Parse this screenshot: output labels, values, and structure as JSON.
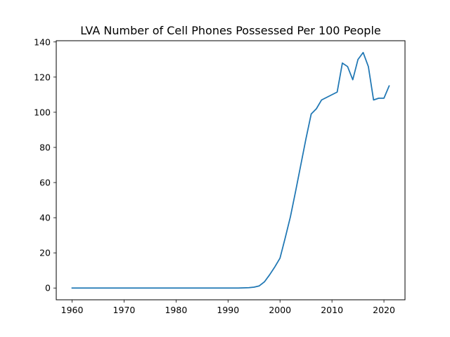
{
  "chart_data": {
    "type": "line",
    "title": "LVA Number of Cell Phones Possessed Per 100 People",
    "xlabel": "",
    "ylabel": "",
    "xlim": [
      1956.95,
      2024.05
    ],
    "ylim": [
      -6.7,
      140.7
    ],
    "xticks": [
      1960,
      1970,
      1980,
      1990,
      2000,
      2010,
      2020
    ],
    "yticks": [
      0,
      20,
      40,
      60,
      80,
      100,
      120,
      140
    ],
    "grid": false,
    "line_color": "#1f77b4",
    "series": [
      {
        "x": [
          1960,
          1961,
          1962,
          1963,
          1964,
          1965,
          1966,
          1967,
          1968,
          1969,
          1970,
          1971,
          1972,
          1973,
          1974,
          1975,
          1976,
          1977,
          1978,
          1979,
          1980,
          1981,
          1982,
          1983,
          1984,
          1985,
          1986,
          1987,
          1988,
          1989,
          1990,
          1991,
          1992,
          1993,
          1994,
          1995,
          1996,
          1997,
          1998,
          1999,
          2000,
          2001,
          2002,
          2003,
          2004,
          2005,
          2006,
          2007,
          2008,
          2009,
          2010,
          2011,
          2012,
          2013,
          2014,
          2015,
          2016,
          2017,
          2018,
          2019,
          2020,
          2021
        ],
        "y": [
          0,
          0,
          0,
          0,
          0,
          0,
          0,
          0,
          0,
          0,
          0,
          0,
          0,
          0,
          0,
          0,
          0,
          0,
          0,
          0,
          0,
          0,
          0,
          0,
          0,
          0,
          0,
          0,
          0,
          0,
          0,
          0,
          0,
          0.1,
          0.2,
          0.5,
          1.2,
          3.5,
          7.5,
          12,
          17,
          28.5,
          40.5,
          55,
          70,
          85,
          99,
          102,
          107,
          108.5,
          110,
          111.5,
          128,
          126,
          118.5,
          130,
          134,
          126,
          107,
          108,
          108,
          115
        ]
      }
    ]
  }
}
